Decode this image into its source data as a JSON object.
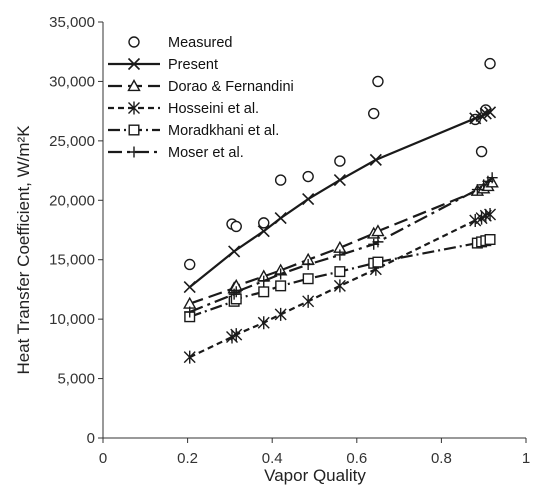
{
  "chart_data": {
    "type": "scatter",
    "xlabel": "Vapor Quality",
    "ylabel": "Heat Transfer Coefficient, W/m²K",
    "xlim": [
      0,
      1
    ],
    "ylim": [
      0,
      35000
    ],
    "x_ticks": [
      0,
      0.2,
      0.4,
      0.6,
      0.8,
      1
    ],
    "y_ticks": [
      0,
      5000,
      10000,
      15000,
      20000,
      25000,
      30000,
      35000
    ],
    "x_tick_labels": [
      "0",
      "0.2",
      "0.4",
      "0.6",
      "0.8",
      "1"
    ],
    "y_tick_labels": [
      "0",
      "5,000",
      "10,000",
      "15,000",
      "20,000",
      "25,000",
      "30,000",
      "35,000"
    ],
    "grid": false,
    "legend_position": "top-left",
    "series": [
      {
        "name": "Measured",
        "marker": "circle",
        "line": "none",
        "x": [
          0.205,
          0.305,
          0.315,
          0.38,
          0.42,
          0.485,
          0.56,
          0.64,
          0.65,
          0.88,
          0.895,
          0.905,
          0.915
        ],
        "y": [
          14600,
          18000,
          17800,
          18100,
          21700,
          22000,
          23300,
          27300,
          30000,
          26800,
          24100,
          27600,
          31500
        ]
      },
      {
        "name": "Present",
        "marker": "x",
        "line": "solid",
        "x": [
          0.205,
          0.31,
          0.38,
          0.42,
          0.485,
          0.56,
          0.645,
          0.88,
          0.895,
          0.905,
          0.915
        ],
        "y": [
          12700,
          15700,
          17400,
          18500,
          20100,
          21700,
          23400,
          26900,
          27100,
          27300,
          27400
        ]
      },
      {
        "name": "Dorao & Fernandini",
        "marker": "triangle",
        "line": "dashed",
        "x": [
          0.205,
          0.31,
          0.315,
          0.38,
          0.42,
          0.485,
          0.56,
          0.64,
          0.65,
          0.885,
          0.9,
          0.91,
          0.92
        ],
        "y": [
          11300,
          12600,
          12800,
          13600,
          14100,
          15000,
          16000,
          17200,
          17400,
          20800,
          21000,
          21200,
          21500
        ]
      },
      {
        "name": "Hosseini et al.",
        "marker": "star",
        "line": "dashed-short",
        "x": [
          0.205,
          0.305,
          0.315,
          0.38,
          0.42,
          0.485,
          0.56,
          0.645,
          0.88,
          0.895,
          0.905,
          0.915
        ],
        "y": [
          6800,
          8500,
          8700,
          9700,
          10400,
          11500,
          12800,
          14200,
          18300,
          18500,
          18700,
          18800
        ]
      },
      {
        "name": "Moradkhani et al.",
        "marker": "square",
        "line": "dash-dot",
        "x": [
          0.205,
          0.31,
          0.315,
          0.38,
          0.42,
          0.485,
          0.56,
          0.64,
          0.65,
          0.885,
          0.895,
          0.905,
          0.915
        ],
        "y": [
          10200,
          11500,
          11700,
          12300,
          12800,
          13400,
          14000,
          14700,
          14800,
          16400,
          16500,
          16600,
          16700
        ]
      },
      {
        "name": "Moser et al.",
        "marker": "plus",
        "line": "dash-dot-long",
        "x": [
          0.205,
          0.31,
          0.315,
          0.38,
          0.42,
          0.485,
          0.56,
          0.64,
          0.65,
          0.885,
          0.9,
          0.91,
          0.92
        ],
        "y": [
          10600,
          12100,
          12300,
          13200,
          13800,
          14600,
          15400,
          16300,
          16500,
          20900,
          21300,
          21600,
          21900
        ]
      }
    ]
  },
  "style": {
    "line_color": "#1a1a1a",
    "text_color": "#222222",
    "axis_color": "#333333"
  }
}
